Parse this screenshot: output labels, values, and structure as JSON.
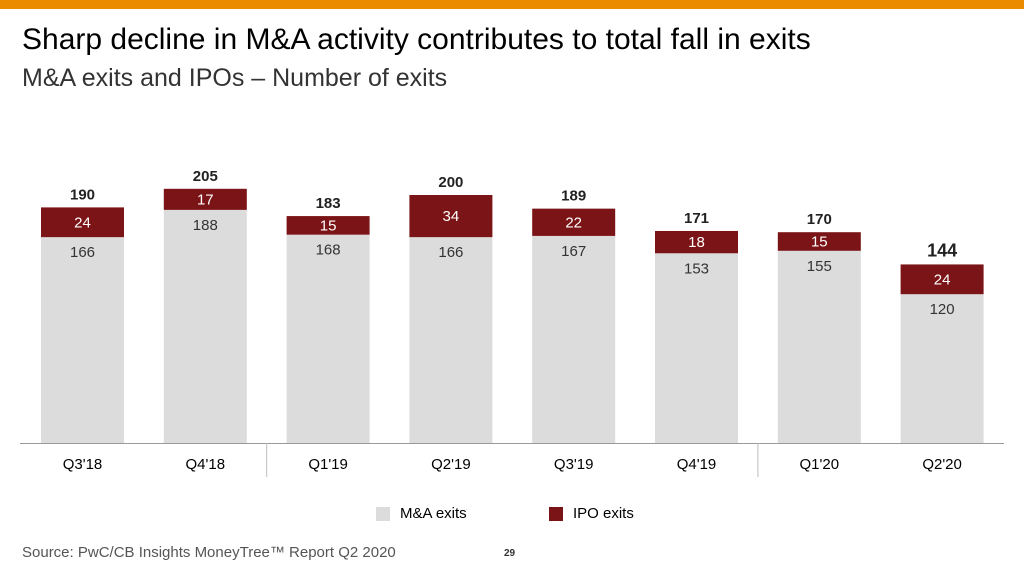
{
  "title": "Sharp decline in M&A activity contributes to total fall in exits",
  "subtitle": "M&A exits and IPOs – Number of exits",
  "source": "Source: PwC/CB Insights MoneyTree™ Report Q2 2020",
  "page_number": "29",
  "colors": {
    "accent_bar": "#eb8c00",
    "ma_exits": "#dcdcdc",
    "ipo_exits": "#7b1416"
  },
  "chart_data": {
    "type": "bar",
    "stacked": true,
    "categories": [
      "Q3'18",
      "Q4'18",
      "Q1'19",
      "Q2'19",
      "Q3'19",
      "Q4'19",
      "Q1'20",
      "Q2'20"
    ],
    "series": [
      {
        "name": "M&A exits",
        "values": [
          166,
          188,
          168,
          166,
          167,
          153,
          155,
          120
        ]
      },
      {
        "name": "IPO exits",
        "values": [
          24,
          17,
          15,
          34,
          22,
          18,
          15,
          24
        ]
      }
    ],
    "totals": [
      190,
      205,
      183,
      200,
      189,
      171,
      170,
      144
    ],
    "title": "",
    "xlabel": "",
    "ylabel": "",
    "ylim": [
      0,
      205
    ],
    "grid": false,
    "legend": "bottom"
  }
}
